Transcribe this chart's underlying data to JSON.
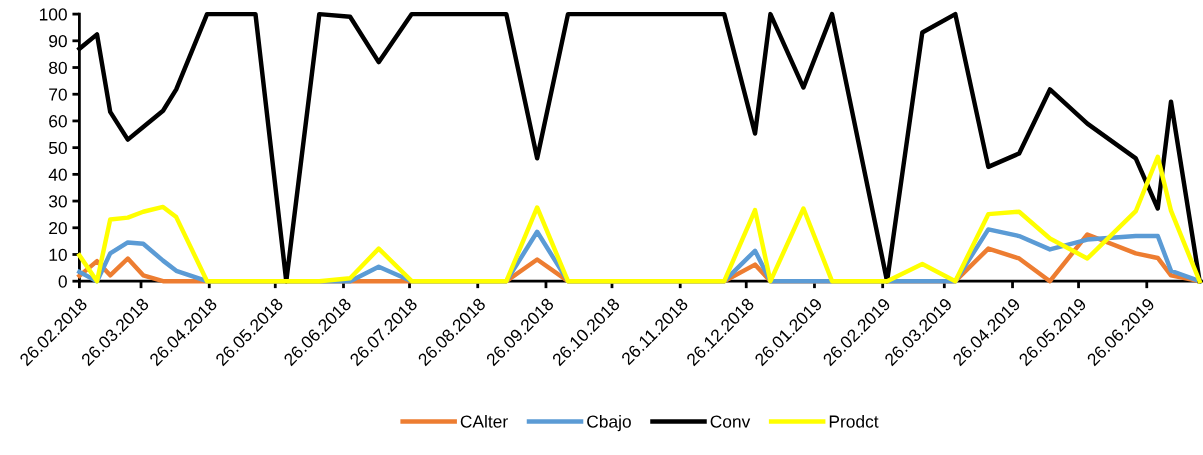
{
  "chart_data": {
    "type": "line",
    "x": [
      "2018-02-26",
      "2018-03-06",
      "2018-03-12",
      "2018-03-20",
      "2018-03-27",
      "2018-04-05",
      "2018-04-11",
      "2018-04-25",
      "2018-05-17",
      "2018-05-31",
      "2018-06-15",
      "2018-06-29",
      "2018-07-12",
      "2018-07-27",
      "2018-09-08",
      "2018-09-22",
      "2018-10-06",
      "2018-12-16",
      "2018-12-30",
      "2019-01-06",
      "2019-01-21",
      "2019-02-03",
      "2019-02-28",
      "2019-03-16",
      "2019-03-31",
      "2019-04-15",
      "2019-04-29",
      "2019-05-13",
      "2019-05-30",
      "2019-06-21",
      "2019-07-01",
      "2019-07-07",
      "2019-07-20"
    ],
    "series": [
      {
        "name": "CAlter",
        "color": "#ed7d31",
        "values": [
          2,
          7.5,
          2.2,
          8.5,
          2.2,
          0,
          0,
          0,
          0,
          0,
          0,
          0,
          0,
          0,
          0,
          8.1,
          0,
          0,
          6.2,
          0,
          0,
          0,
          0,
          0,
          0,
          12.2,
          8.5,
          0,
          17.5,
          10.4,
          8.7,
          2.2,
          0
        ]
      },
      {
        "name": "Cbajo",
        "color": "#5b9bd5",
        "values": [
          3.5,
          0,
          10.4,
          14.5,
          14,
          7.7,
          3.9,
          0,
          0,
          0,
          0,
          0,
          5.4,
          0,
          0,
          18.5,
          0,
          0,
          11.4,
          0,
          0,
          0,
          0,
          0,
          0,
          19.4,
          16.9,
          11.9,
          15.6,
          16.9,
          16.9,
          3.9,
          0
        ]
      },
      {
        "name": "Conv",
        "color": "#000000",
        "values": [
          87,
          92.4,
          63.4,
          53,
          57.7,
          63.8,
          71.8,
          100,
          100,
          0,
          100,
          99,
          82,
          100,
          100,
          46,
          100,
          100,
          55.3,
          100,
          72.5,
          100,
          0,
          93.1,
          100,
          42.8,
          47.8,
          71.8,
          59,
          46,
          27.2,
          67.2,
          0
        ]
      },
      {
        "name": "Prodct",
        "color": "#ffff00",
        "values": [
          9.7,
          0,
          23.1,
          23.8,
          26,
          27.8,
          24,
          0,
          0,
          0,
          0,
          1.1,
          12.2,
          0,
          0,
          27.6,
          0,
          0,
          26.6,
          0,
          27.2,
          0,
          0,
          6.4,
          0,
          25.1,
          26,
          16,
          8.5,
          26.2,
          46.6,
          26.4,
          0
        ]
      }
    ],
    "xlim": [
      "2018-02-26",
      "2019-07-21"
    ],
    "xticks": [
      {
        "value": "2018-02-26",
        "label": "26.02.2018"
      },
      {
        "value": "2018-03-26",
        "label": "26.03.2018"
      },
      {
        "value": "2018-04-26",
        "label": "26.04.2018"
      },
      {
        "value": "2018-05-26",
        "label": "26.05.2018"
      },
      {
        "value": "2018-06-26",
        "label": "26.06.2018"
      },
      {
        "value": "2018-07-26",
        "label": "26.07.2018"
      },
      {
        "value": "2018-08-26",
        "label": "26.08.2018"
      },
      {
        "value": "2018-09-26",
        "label": "26.09.2018"
      },
      {
        "value": "2018-10-26",
        "label": "26.10.2018"
      },
      {
        "value": "2018-11-26",
        "label": "26.11.2018"
      },
      {
        "value": "2018-12-26",
        "label": "26.12.2018"
      },
      {
        "value": "2019-01-26",
        "label": "26.01.2019"
      },
      {
        "value": "2019-02-26",
        "label": "26.02.2019"
      },
      {
        "value": "2019-03-26",
        "label": "26.03.2019"
      },
      {
        "value": "2019-04-26",
        "label": "26.04.2019"
      },
      {
        "value": "2019-05-26",
        "label": "26.05.2019"
      },
      {
        "value": "2019-06-26",
        "label": "26.06.2019"
      }
    ],
    "ylim": [
      0,
      100
    ],
    "yticks": [
      0,
      10,
      20,
      30,
      40,
      50,
      60,
      70,
      80,
      90,
      100
    ],
    "grid": false,
    "legend": "bottom",
    "marker": "none",
    "line_style": "solid"
  }
}
